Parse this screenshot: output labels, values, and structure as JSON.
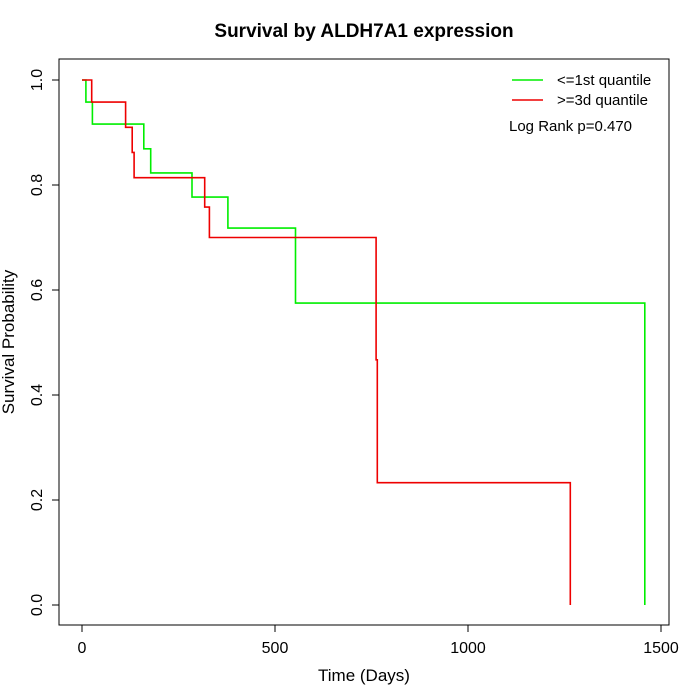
{
  "chart_data": {
    "type": "line",
    "title": "Survival by ALDH7A1 expression",
    "xlabel": "Time (Days)",
    "ylabel": "Survival Probability",
    "xlim": [
      0,
      1500
    ],
    "ylim": [
      0,
      1
    ],
    "x_ticks": [
      0,
      500,
      1000,
      1500
    ],
    "y_ticks": [
      0.0,
      0.2,
      0.4,
      0.6,
      0.8,
      1.0
    ],
    "x_tick_labels": [
      "0",
      "500",
      "1000",
      "1500"
    ],
    "y_tick_labels": [
      "0.0",
      "0.2",
      "0.4",
      "0.6",
      "0.8",
      "1.0"
    ],
    "grid": false,
    "legend_position": "top-right",
    "annotation": "Log Rank p=0.470",
    "series": [
      {
        "name": "<=1st quantile",
        "color": "#00ee00",
        "step_points": [
          [
            0,
            1.0
          ],
          [
            10,
            0.958
          ],
          [
            27,
            0.916
          ],
          [
            160,
            0.869
          ],
          [
            178,
            0.823
          ],
          [
            285,
            0.777
          ],
          [
            378,
            0.718
          ],
          [
            553,
            0.575
          ],
          [
            1458,
            0.0
          ]
        ]
      },
      {
        "name": ">=3d quantile",
        "color": "#ee0000",
        "step_points": [
          [
            0,
            1.0
          ],
          [
            25,
            0.958
          ],
          [
            113,
            0.91
          ],
          [
            130,
            0.862
          ],
          [
            135,
            0.814
          ],
          [
            318,
            0.758
          ],
          [
            330,
            0.7
          ],
          [
            762,
            0.467
          ],
          [
            765,
            0.233
          ],
          [
            1265,
            0.0
          ]
        ]
      }
    ]
  }
}
